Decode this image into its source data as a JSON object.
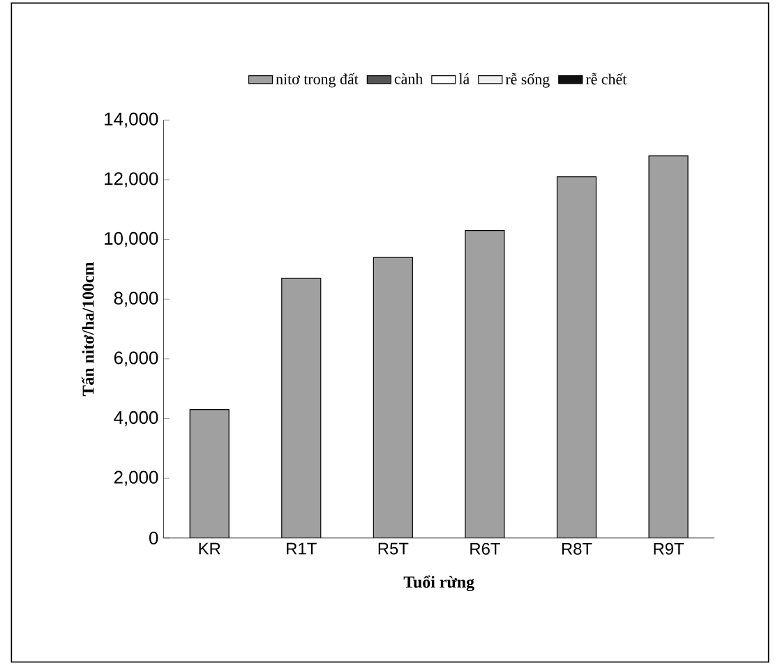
{
  "chart_data": {
    "type": "bar",
    "stacked": true,
    "xlabel": "Tuổi rừng",
    "ylabel": "Tấn nitơ/ha/100cm",
    "categories": [
      "KR",
      "R1T",
      "R5T",
      "R6T",
      "R8T",
      "R9T"
    ],
    "series": [
      {
        "name": "nitơ trong đất",
        "color": "#a0a0a0",
        "values": [
          4300,
          8700,
          9400,
          10300,
          12100,
          12800
        ]
      },
      {
        "name": "cành",
        "color": "#555555",
        "values": [
          0,
          0,
          0,
          0,
          0,
          0
        ]
      },
      {
        "name": "lá",
        "color": "#ffffff",
        "values": [
          0,
          0,
          0,
          0,
          0,
          0
        ]
      },
      {
        "name": "rễ sống",
        "color": "#f0f0f0",
        "values": [
          0,
          0,
          0,
          0,
          0,
          0
        ]
      },
      {
        "name": "rễ chết",
        "color": "#111111",
        "values": [
          0,
          0,
          0,
          0,
          0,
          0
        ]
      }
    ],
    "ylim": [
      0,
      14000
    ],
    "yticks": [
      {
        "value": 0,
        "label": "0"
      },
      {
        "value": 2000,
        "label": "2,000"
      },
      {
        "value": 4000,
        "label": "4,000"
      },
      {
        "value": 6000,
        "label": "6,000"
      },
      {
        "value": 8000,
        "label": "8,000"
      },
      {
        "value": 10000,
        "label": "10,000"
      },
      {
        "value": 12000,
        "label": "12,000"
      },
      {
        "value": 14000,
        "label": "14,000"
      }
    ],
    "legend": "top",
    "grid": false
  }
}
